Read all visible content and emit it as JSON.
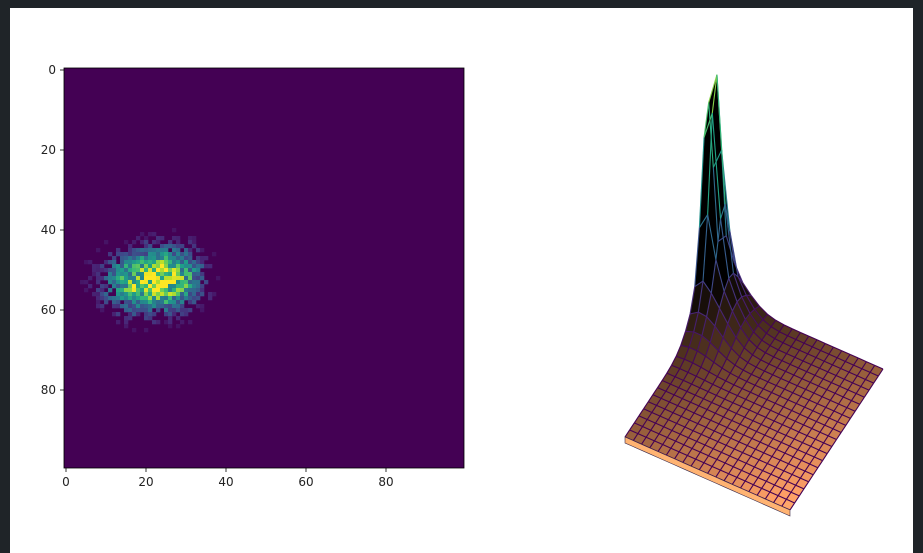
{
  "chart_data": [
    {
      "type": "heatmap",
      "title": "",
      "xlabel": "",
      "ylabel": "",
      "grid_size": [
        100,
        100
      ],
      "xlim": [
        0,
        99
      ],
      "ylim": [
        99,
        0
      ],
      "x_ticks": [
        0,
        20,
        40,
        60,
        80
      ],
      "y_ticks": [
        0,
        20,
        40,
        60,
        80
      ],
      "colormap": "viridis",
      "color_low": "#440154",
      "color_high": "#fde725",
      "peaks": [
        {
          "x": 18,
          "y": 53,
          "sigma_x": 6,
          "sigma_y": 5,
          "weight": 0.95
        },
        {
          "x": 27,
          "y": 52,
          "sigma_x": 5,
          "sigma_y": 5,
          "weight": 0.9
        }
      ],
      "max_point": {
        "x": 26,
        "y": 53
      },
      "grid": false
    },
    {
      "type": "surface",
      "title": "",
      "view": "3D wireframe over shaded surface",
      "wire_colormap": "viridis",
      "surface_colormap": "copper",
      "peak_height": 1.0,
      "grid": false
    }
  ]
}
